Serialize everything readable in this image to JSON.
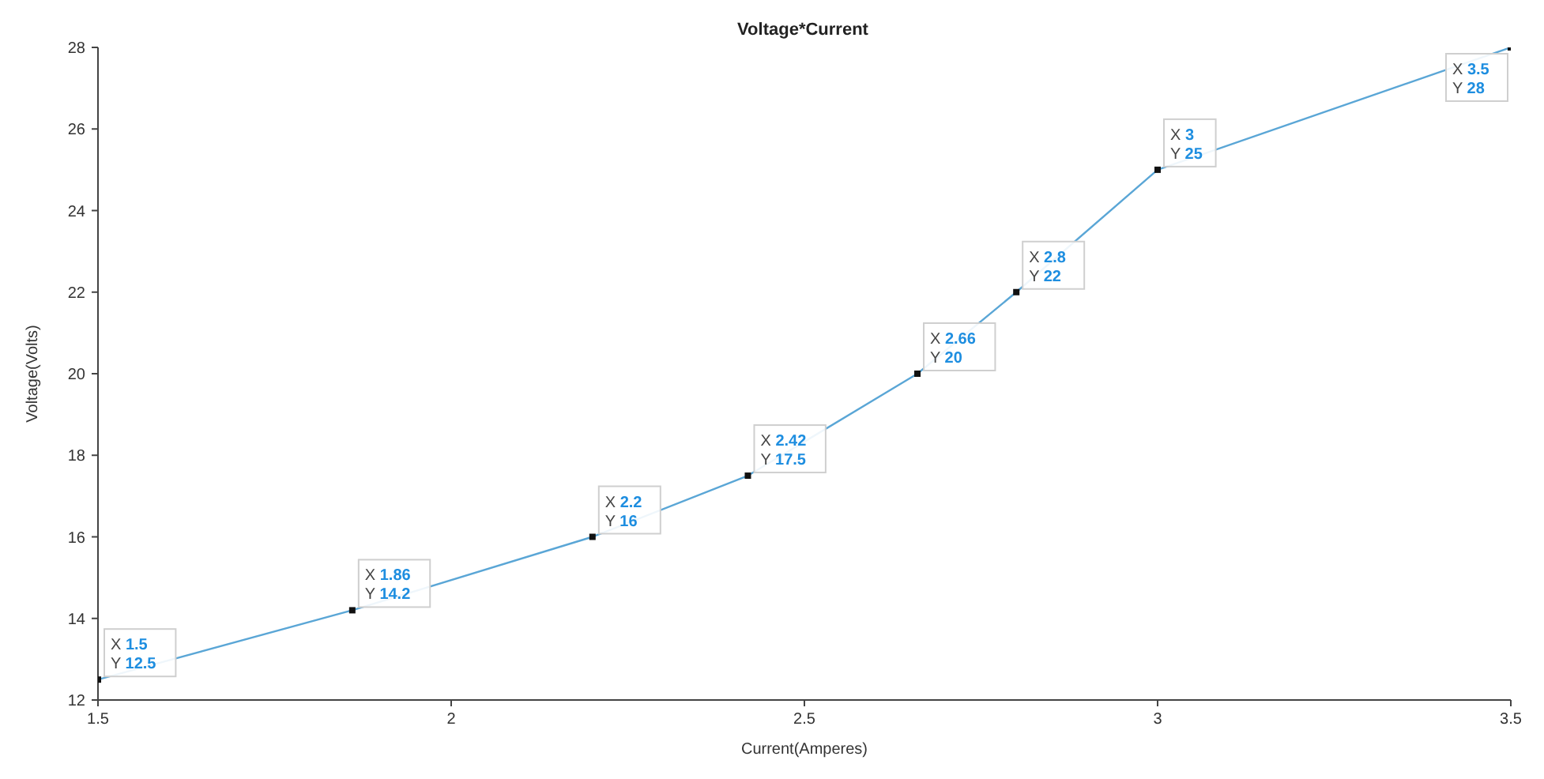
{
  "chart_data": {
    "type": "line",
    "title": "Voltage*Current",
    "xlabel": "Current(Amperes)",
    "ylabel": "Voltage(Volts)",
    "x": [
      1.5,
      1.86,
      2.2,
      2.42,
      2.66,
      2.8,
      3,
      3.5
    ],
    "series": [
      {
        "color": "#5aa6d6",
        "values": [
          12.5,
          14.2,
          16,
          17.5,
          20,
          22,
          25,
          28
        ]
      }
    ],
    "value_labels": [
      "X 1.5\nY 12.5",
      "X 1.86\nY 14.2",
      "X 2.2\nY 16",
      "X 2.42\nY 17.5",
      "X 2.66\nY 20",
      "X 2.8\nY 22",
      "X 3\nY 25",
      "X 3.5\nY 28"
    ],
    "xlim": [
      1.5,
      3.5
    ],
    "xticks": [
      1.5,
      2,
      2.5,
      3,
      3.5
    ],
    "ylim": [
      12,
      28
    ],
    "yticks": [
      12,
      14,
      16,
      18,
      20,
      22,
      24,
      26,
      28
    ],
    "grid": false,
    "legend": false,
    "marker": "square",
    "line_style": "solid"
  }
}
